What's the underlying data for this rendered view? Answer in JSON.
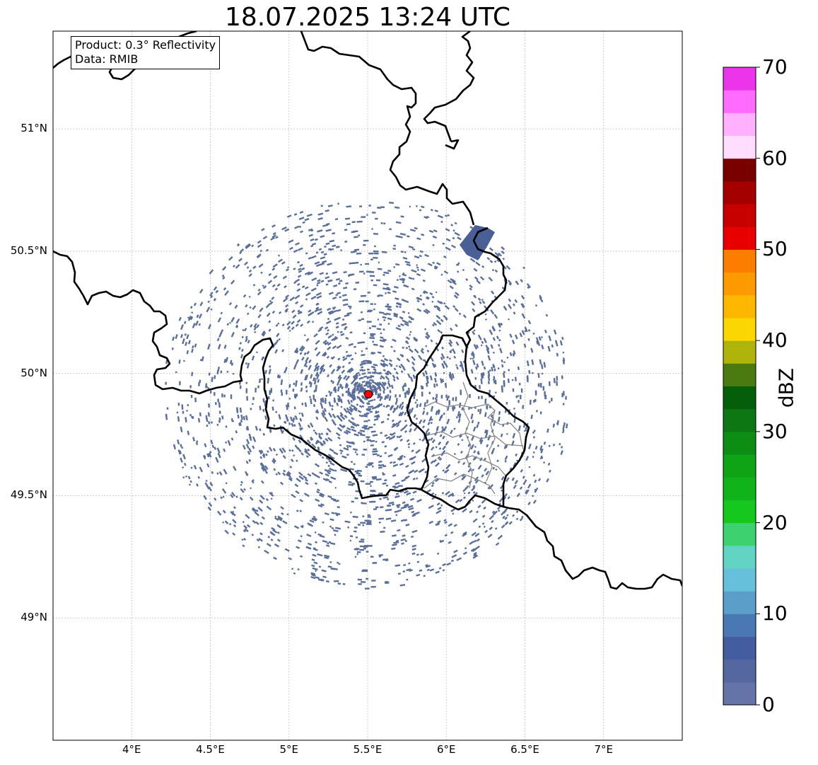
{
  "title": "18.07.2025 13:24 UTC",
  "info": {
    "product_label": "Product: 0.3° Reflectivity",
    "data_label": "Data: RMIB"
  },
  "map": {
    "lon_range": [
      3.5,
      7.5
    ],
    "lat_range": [
      48.5,
      51.4
    ],
    "lon_ticks": [
      {
        "value": 4.0,
        "label": "4°E"
      },
      {
        "value": 4.5,
        "label": "4.5°E"
      },
      {
        "value": 5.0,
        "label": "5°E"
      },
      {
        "value": 5.5,
        "label": "5.5°E"
      },
      {
        "value": 6.0,
        "label": "6°E"
      },
      {
        "value": 6.5,
        "label": "6.5°E"
      },
      {
        "value": 7.0,
        "label": "7°E"
      }
    ],
    "lat_ticks": [
      {
        "value": 49.0,
        "label": "49°N"
      },
      {
        "value": 49.5,
        "label": "49.5°N"
      },
      {
        "value": 50.0,
        "label": "50°N"
      },
      {
        "value": 50.5,
        "label": "50.5°N"
      },
      {
        "value": 51.0,
        "label": "51°N"
      }
    ],
    "radar_site": {
      "lon": 5.505,
      "lat": 49.915,
      "color": "#ff0000"
    },
    "echo_color": "#5a6e9a",
    "border_color": "#000000",
    "admin_border_color": "#888888",
    "grid_color": "#bbbbbb"
  },
  "colorbar": {
    "label": "dBZ",
    "vmin": 0,
    "vmax": 70,
    "ticks": [
      {
        "value": 0,
        "label": "0"
      },
      {
        "value": 10,
        "label": "10"
      },
      {
        "value": 20,
        "label": "20"
      },
      {
        "value": 30,
        "label": "30"
      },
      {
        "value": 40,
        "label": "40"
      },
      {
        "value": 50,
        "label": "50"
      },
      {
        "value": 60,
        "label": "60"
      },
      {
        "value": 70,
        "label": "70"
      }
    ],
    "colors": [
      "#6574a8",
      "#54679f",
      "#445da0",
      "#4a78b3",
      "#5b9ec9",
      "#66c0dc",
      "#62d4c4",
      "#3ed16f",
      "#14c81e",
      "#10b41a",
      "#0fa316",
      "#0e8d15",
      "#0c7713",
      "#055f0a",
      "#4a7a10",
      "#afb40a",
      "#fcd600",
      "#fdb701",
      "#fd9a01",
      "#fd7d01",
      "#e80000",
      "#c70000",
      "#a40000",
      "#7a0000",
      "#ffddff",
      "#ffb0ff",
      "#ff6bff",
      "#eb35eb"
    ]
  }
}
